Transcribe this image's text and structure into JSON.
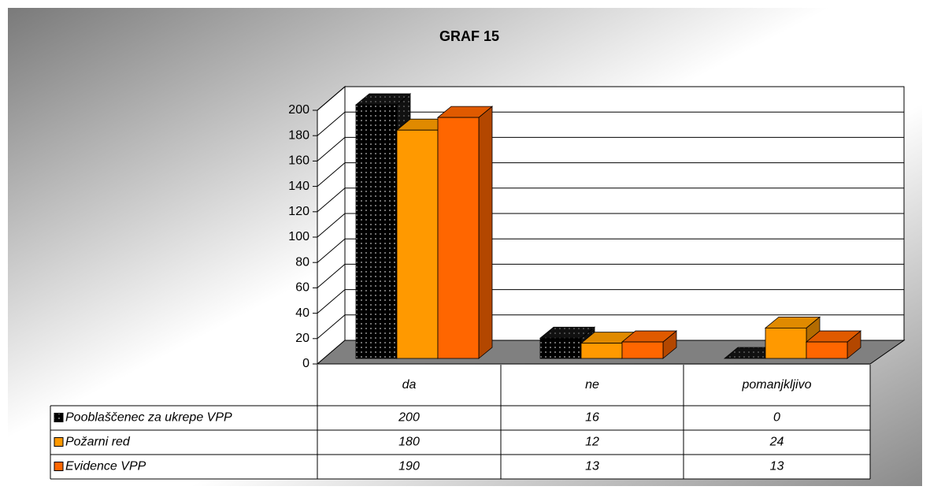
{
  "chart_data": {
    "type": "bar3d",
    "title": "GRAF 15",
    "categories": [
      "da",
      "ne",
      "pomanjkljivo"
    ],
    "series": [
      {
        "name": "Pooblaščenec za ukrepe VPP",
        "color": "#000000",
        "values": [
          200,
          16,
          0
        ]
      },
      {
        "name": "Požarni red",
        "color": "#FF9900",
        "values": [
          180,
          12,
          24
        ]
      },
      {
        "name": "Evidence VPP",
        "color": "#FF6600",
        "values": [
          190,
          13,
          13
        ]
      }
    ],
    "ylim": [
      0,
      200
    ],
    "yticks": [
      0,
      20,
      40,
      60,
      80,
      100,
      120,
      140,
      160,
      180,
      200
    ],
    "grid": true,
    "data_table": true
  }
}
